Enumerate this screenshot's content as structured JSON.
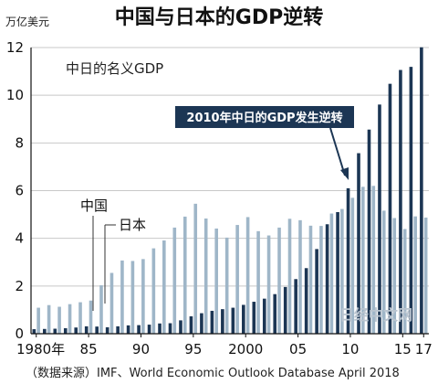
{
  "chart_data": {
    "type": "bar",
    "title": "中国与日本的GDP逆转",
    "subtitle": "中日的名义GDP",
    "unit_label": "万亿美元",
    "ylim": [
      0,
      12
    ],
    "yticks": [
      0,
      2,
      4,
      6,
      8,
      10,
      12
    ],
    "x_tick_labels": [
      {
        "year": 1980,
        "label": "1980年"
      },
      {
        "year": 1985,
        "label": "85"
      },
      {
        "year": 1990,
        "label": "90"
      },
      {
        "year": 1995,
        "label": "95"
      },
      {
        "year": 2000,
        "label": "2000"
      },
      {
        "year": 2005,
        "label": "05"
      },
      {
        "year": 2010,
        "label": "10"
      },
      {
        "year": 2015,
        "label": "15"
      },
      {
        "year": 2017,
        "label": "17"
      }
    ],
    "years": [
      1980,
      1981,
      1982,
      1983,
      1984,
      1985,
      1986,
      1987,
      1988,
      1989,
      1990,
      1991,
      1992,
      1993,
      1994,
      1995,
      1996,
      1997,
      1998,
      1999,
      2000,
      2001,
      2002,
      2003,
      2004,
      2005,
      2006,
      2007,
      2008,
      2009,
      2010,
      2011,
      2012,
      2013,
      2014,
      2015,
      2016,
      2017
    ],
    "series": [
      {
        "name": "中国",
        "color": "#1c3654",
        "values": [
          0.19,
          0.2,
          0.21,
          0.23,
          0.26,
          0.31,
          0.3,
          0.27,
          0.31,
          0.35,
          0.36,
          0.38,
          0.43,
          0.44,
          0.56,
          0.73,
          0.86,
          0.96,
          1.03,
          1.09,
          1.21,
          1.34,
          1.47,
          1.66,
          1.96,
          2.29,
          2.75,
          3.55,
          4.59,
          5.1,
          6.1,
          7.57,
          8.56,
          9.61,
          10.48,
          11.06,
          11.19,
          12.01
        ]
      },
      {
        "name": "日本",
        "color": "#9fb6c8",
        "values": [
          1.09,
          1.2,
          1.13,
          1.24,
          1.32,
          1.39,
          2.03,
          2.55,
          3.07,
          3.05,
          3.13,
          3.58,
          3.91,
          4.45,
          4.91,
          5.45,
          4.83,
          4.41,
          4.03,
          4.56,
          4.89,
          4.3,
          4.12,
          4.45,
          4.82,
          4.76,
          4.53,
          4.52,
          5.04,
          5.23,
          5.7,
          6.16,
          6.2,
          5.16,
          4.85,
          4.39,
          4.92,
          4.87
        ]
      }
    ],
    "annotation": "2010年中日的GDP发生逆转",
    "source": "（数据来源）IMF、World Economic Outlook Database April 2018",
    "watermark": "日经中文网",
    "grid": true
  }
}
